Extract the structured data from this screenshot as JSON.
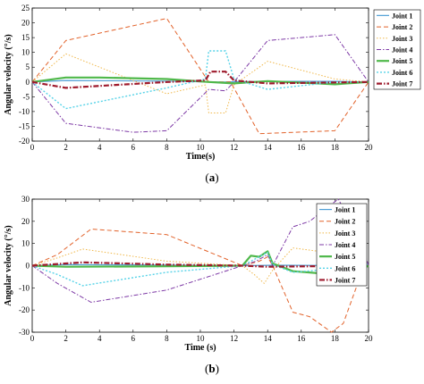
{
  "colors": {
    "joint1": "#4f9fd6",
    "joint2": "#e2622a",
    "joint3": "#f0b84a",
    "joint4": "#7e3aa6",
    "joint5": "#4fb84a",
    "joint6": "#57d3e8",
    "joint7": "#9e1a2c"
  },
  "chart_data": [
    {
      "type": "line",
      "caption": {
        "open": "(",
        "letter": "a",
        "close": ")"
      },
      "xlabel": "Time(s)",
      "ylabel": "Angular velocity (°/s)",
      "xlim": [
        0,
        20
      ],
      "ylim": [
        -20,
        25
      ],
      "xticks": [
        "0",
        "2",
        "4",
        "6",
        "8",
        "10",
        "12",
        "14",
        "16",
        "18",
        "20"
      ],
      "yticks": [
        "-20",
        "-15",
        "-10",
        "-5",
        "0",
        "5",
        "10",
        "15",
        "20",
        "25"
      ],
      "legend_position": "right",
      "series": [
        {
          "name": "Joint 1",
          "points": [
            [
              0,
              0
            ],
            [
              2,
              0.5
            ],
            [
              8,
              0.3
            ],
            [
              10.5,
              0
            ],
            [
              11.5,
              0
            ],
            [
              14,
              0.2
            ],
            [
              18,
              0.2
            ],
            [
              20,
              0
            ]
          ]
        },
        {
          "name": "Joint 2",
          "points": [
            [
              0,
              0
            ],
            [
              2,
              14
            ],
            [
              8,
              21.5
            ],
            [
              10.5,
              0
            ],
            [
              11.8,
              0
            ],
            [
              13.5,
              -17.5
            ],
            [
              18,
              -16.5
            ],
            [
              20,
              0
            ]
          ]
        },
        {
          "name": "Joint 3",
          "points": [
            [
              0,
              0
            ],
            [
              2,
              9.5
            ],
            [
              8,
              -4
            ],
            [
              10.3,
              -1
            ],
            [
              10.5,
              -10.5
            ],
            [
              11.5,
              -10.5
            ],
            [
              12,
              -1
            ],
            [
              14,
              7
            ],
            [
              18,
              1
            ],
            [
              20,
              0
            ]
          ]
        },
        {
          "name": "Joint 4",
          "points": [
            [
              0,
              0
            ],
            [
              2,
              -14
            ],
            [
              6,
              -17
            ],
            [
              8,
              -16.5
            ],
            [
              10.5,
              -2.5
            ],
            [
              11.5,
              -3
            ],
            [
              12,
              0
            ],
            [
              14,
              14
            ],
            [
              18,
              16
            ],
            [
              20,
              0
            ]
          ]
        },
        {
          "name": "Joint 5",
          "points": [
            [
              0,
              0
            ],
            [
              2,
              1.5
            ],
            [
              4,
              1.5
            ],
            [
              8,
              1
            ],
            [
              10.5,
              0
            ],
            [
              12,
              -0.5
            ],
            [
              14,
              0.3
            ],
            [
              18,
              -0.8
            ],
            [
              20,
              0
            ]
          ]
        },
        {
          "name": "Joint 6",
          "points": [
            [
              0,
              0
            ],
            [
              2,
              -9
            ],
            [
              8,
              -2
            ],
            [
              10.3,
              1
            ],
            [
              10.5,
              10.5
            ],
            [
              11.5,
              10.5
            ],
            [
              12,
              1
            ],
            [
              14,
              -2.5
            ],
            [
              18,
              0
            ],
            [
              20,
              0
            ]
          ]
        },
        {
          "name": "Joint 7",
          "points": [
            [
              0,
              0
            ],
            [
              2,
              -2
            ],
            [
              8,
              0
            ],
            [
              10.3,
              0.5
            ],
            [
              10.6,
              3.5
            ],
            [
              11.5,
              3.5
            ],
            [
              12,
              0.5
            ],
            [
              14,
              -0.5
            ],
            [
              20,
              0
            ]
          ]
        }
      ]
    },
    {
      "type": "line",
      "caption": {
        "open": "(",
        "letter": "b",
        "close": ")"
      },
      "xlabel": "Time (s)",
      "ylabel": "Angular velocity (°/s)",
      "xlim": [
        0,
        20
      ],
      "ylim": [
        -30,
        30
      ],
      "xticks": [
        "0",
        "2",
        "4",
        "6",
        "8",
        "10",
        "12",
        "14",
        "16",
        "18",
        "20"
      ],
      "yticks": [
        "-30",
        "-20",
        "-10",
        "0",
        "10",
        "20",
        "30"
      ],
      "legend_position": "top-right",
      "series": [
        {
          "name": "Joint 1",
          "points": [
            [
              0,
              0
            ],
            [
              2,
              0.5
            ],
            [
              8,
              0.3
            ],
            [
              12.5,
              0
            ],
            [
              14.5,
              0.2
            ],
            [
              20,
              0
            ]
          ]
        },
        {
          "name": "Joint 2",
          "points": [
            [
              0,
              0
            ],
            [
              1.5,
              5
            ],
            [
              3.5,
              16.5
            ],
            [
              8,
              14
            ],
            [
              12.5,
              0
            ],
            [
              13.5,
              2
            ],
            [
              14,
              4
            ],
            [
              14.3,
              0
            ],
            [
              15.5,
              -21
            ],
            [
              16.5,
              -23
            ],
            [
              17.8,
              -30
            ],
            [
              18.5,
              -26
            ],
            [
              19.5,
              -5
            ],
            [
              20,
              0
            ]
          ]
        },
        {
          "name": "Joint 3",
          "points": [
            [
              0,
              0
            ],
            [
              1.5,
              3.5
            ],
            [
              3,
              7.5
            ],
            [
              8,
              2
            ],
            [
              12.5,
              0
            ],
            [
              13.2,
              -4
            ],
            [
              13.8,
              -8
            ],
            [
              14.3,
              -2
            ],
            [
              15.5,
              8
            ],
            [
              17.5,
              6
            ],
            [
              19.5,
              2
            ],
            [
              20,
              0
            ]
          ]
        },
        {
          "name": "Joint 4",
          "points": [
            [
              0,
              0
            ],
            [
              1.5,
              -8
            ],
            [
              3.5,
              -16.5
            ],
            [
              8,
              -11
            ],
            [
              12.5,
              0
            ],
            [
              13.3,
              2
            ],
            [
              14,
              5
            ],
            [
              14.3,
              0
            ],
            [
              15.5,
              17.5
            ],
            [
              16.5,
              20
            ],
            [
              17.5,
              26
            ],
            [
              18.2,
              30
            ],
            [
              19.5,
              12
            ],
            [
              20,
              0
            ]
          ]
        },
        {
          "name": "Joint 5",
          "points": [
            [
              0,
              0
            ],
            [
              2,
              -0.5
            ],
            [
              8,
              -0.3
            ],
            [
              12.5,
              0
            ],
            [
              13,
              4.5
            ],
            [
              13.5,
              4
            ],
            [
              14,
              6.5
            ],
            [
              14.3,
              1
            ],
            [
              15.5,
              -2.5
            ],
            [
              18,
              -4
            ],
            [
              19.5,
              -2
            ],
            [
              20,
              0
            ]
          ]
        },
        {
          "name": "Joint 6",
          "points": [
            [
              0,
              0
            ],
            [
              1.5,
              -4
            ],
            [
              3,
              -9
            ],
            [
              8,
              -3
            ],
            [
              12.5,
              0
            ],
            [
              13,
              2
            ],
            [
              14,
              6
            ],
            [
              14.3,
              0.5
            ],
            [
              15.5,
              -3
            ],
            [
              17,
              -2
            ],
            [
              18.2,
              4
            ],
            [
              19.5,
              3
            ],
            [
              20,
              0
            ]
          ]
        },
        {
          "name": "Joint 7",
          "points": [
            [
              0,
              0
            ],
            [
              3,
              1.5
            ],
            [
              8,
              0.5
            ],
            [
              12.5,
              0
            ],
            [
              14,
              -0.5
            ],
            [
              20,
              0
            ]
          ]
        }
      ]
    }
  ]
}
